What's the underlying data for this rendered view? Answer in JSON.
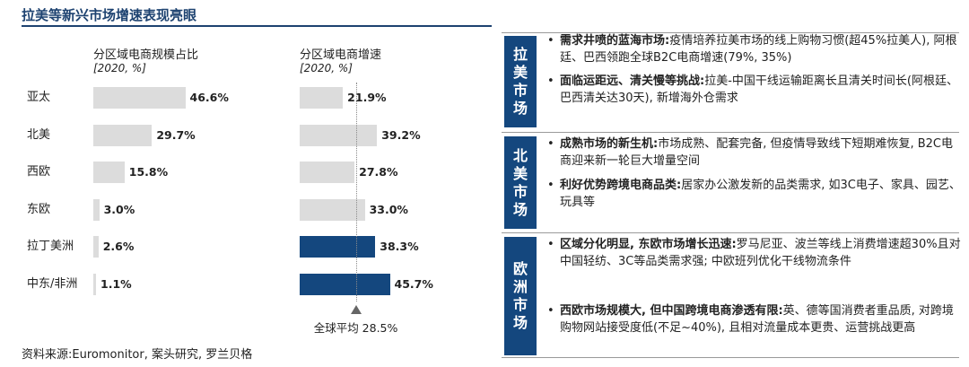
{
  "title": "拉美等新兴市场增速表现亮眼",
  "source": "资料来源:Euromonitor, 案头研究, 罗兰贝格",
  "colors": {
    "navy": "#14477e",
    "gray_bar": "#dcdcdc"
  },
  "chart_data": {
    "type": "bar",
    "categories": [
      "亚太",
      "北美",
      "西欧",
      "东欧",
      "拉丁美洲",
      "中东/非洲"
    ],
    "panels": [
      {
        "title": "分区域电商规模占比",
        "unit": "[2020, %]",
        "values": [
          46.6,
          29.7,
          15.8,
          3.0,
          2.6,
          1.1
        ],
        "labels": [
          "46.6%",
          "29.7%",
          "15.8%",
          "3.0%",
          "2.6%",
          "1.1%"
        ],
        "xlim": [
          0,
          100
        ]
      },
      {
        "title": "分区域电商增速",
        "unit": "[2020, %]",
        "values": [
          21.9,
          39.2,
          27.8,
          33.0,
          38.3,
          45.7
        ],
        "labels": [
          "21.9%",
          "39.2%",
          "27.8%",
          "33.0%",
          "38.3%",
          "45.7%"
        ],
        "highlight": [
          false,
          false,
          false,
          false,
          true,
          true
        ],
        "xlim": [
          0,
          100
        ],
        "reference_line": {
          "value": 28.5,
          "label": "全球平均 28.5%"
        }
      }
    ]
  },
  "sections": [
    {
      "tag": [
        "拉",
        "美",
        "市",
        "场"
      ],
      "bullets": [
        {
          "bold": "需求井喷的蓝海市场:",
          "text": "疫情培养拉美市场的线上购物习惯(超45%拉美人), 阿根廷、巴西领跑全球B2C电商增速(79%, 35%)"
        },
        {
          "bold": "面临运距远、清关慢等挑战:",
          "text": "拉美-中国干线运输距离长且清关时间长(阿根廷、巴西清关达30天), 新增海外仓需求"
        }
      ]
    },
    {
      "tag": [
        "北",
        "美",
        "市",
        "场"
      ],
      "bullets": [
        {
          "bold": "成熟市场的新生机:",
          "text": "市场成熟、配套完备, 但疫情导致线下短期难恢复, B2C电商迎来新一轮巨大增量空间"
        },
        {
          "bold": "利好优势跨境电商品类:",
          "text": "居家办公激发新的品类需求, 如3C电子、家具、园艺、玩具等"
        }
      ]
    },
    {
      "tag": [
        "欧",
        "洲",
        "市",
        "场"
      ],
      "bullets": [
        {
          "bold": "区域分化明显, 东欧市场增长迅速:",
          "text": "罗马尼亚、波兰等线上消费增速超30%且对中国轻纺、3C等品类需求强; 中欧班列优化干线物流条件"
        },
        {
          "bold": "西欧市场规模大, 但中国跨境电商渗透有限:",
          "text": "英、德等国消费者重品质, 对跨境购物网站接受度低(不足~40%), 且相对流量成本更贵、运营挑战更高"
        }
      ]
    }
  ]
}
